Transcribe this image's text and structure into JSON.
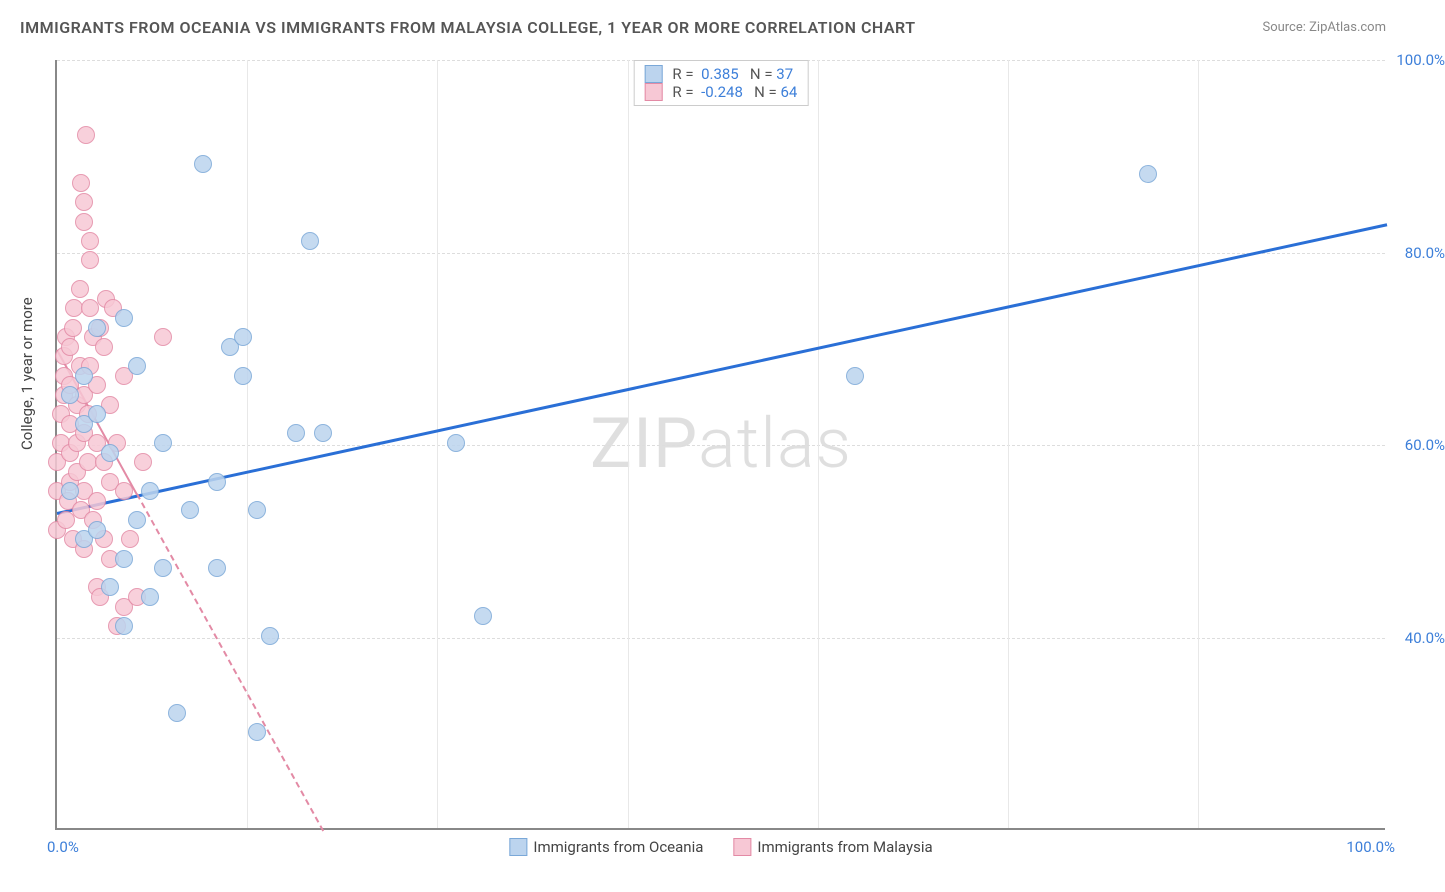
{
  "title": "IMMIGRANTS FROM OCEANIA VS IMMIGRANTS FROM MALAYSIA COLLEGE, 1 YEAR OR MORE CORRELATION CHART",
  "source": "Source: ZipAtlas.com",
  "y_axis_title": "College, 1 year or more",
  "watermark_prefix": "ZIP",
  "watermark_suffix": "atlas",
  "xlim": [
    0,
    100
  ],
  "ylim": [
    20,
    100
  ],
  "x_tick_min": "0.0%",
  "x_tick_max": "100.0%",
  "y_ticks": [
    {
      "v": 40,
      "label": "40.0%"
    },
    {
      "v": 60,
      "label": "60.0%"
    },
    {
      "v": 80,
      "label": "80.0%"
    },
    {
      "v": 100,
      "label": "100.0%"
    }
  ],
  "x_gridlines": [
    14.3,
    28.6,
    42.9,
    57.2,
    71.5,
    85.8
  ],
  "series": [
    {
      "name": "Immigrants from Oceania",
      "fill": "#bcd4ee",
      "stroke": "#7aa8d8",
      "r_value": "0.385",
      "n_value": "37",
      "trend": {
        "x1": 0,
        "y1": 53,
        "x2": 100,
        "y2": 83,
        "color": "#2a6fd6",
        "width": 3,
        "dash": false
      },
      "points": [
        [
          1,
          65
        ],
        [
          1,
          55
        ],
        [
          2,
          67
        ],
        [
          2,
          50
        ],
        [
          2,
          62
        ],
        [
          3,
          63
        ],
        [
          3,
          51
        ],
        [
          3,
          72
        ],
        [
          4,
          45
        ],
        [
          4,
          59
        ],
        [
          5,
          48
        ],
        [
          5,
          73
        ],
        [
          5,
          41
        ],
        [
          6,
          52
        ],
        [
          6,
          68
        ],
        [
          7,
          55
        ],
        [
          7,
          44
        ],
        [
          8,
          47
        ],
        [
          8,
          60
        ],
        [
          9,
          32
        ],
        [
          10,
          53
        ],
        [
          11,
          89
        ],
        [
          12,
          56
        ],
        [
          12,
          47
        ],
        [
          13,
          70
        ],
        [
          14,
          71
        ],
        [
          14,
          67
        ],
        [
          15,
          53
        ],
        [
          15,
          30
        ],
        [
          16,
          40
        ],
        [
          18,
          61
        ],
        [
          19,
          81
        ],
        [
          20,
          61
        ],
        [
          30,
          60
        ],
        [
          32,
          42
        ],
        [
          60,
          67
        ],
        [
          82,
          88
        ]
      ]
    },
    {
      "name": "Immigrants from Malaysia",
      "fill": "#f7c8d5",
      "stroke": "#e38aa5",
      "r_value": "-0.248",
      "n_value": "64",
      "trend": {
        "x1": 0,
        "y1": 70,
        "x2": 20,
        "y2": 20,
        "color": "#e38aa5",
        "width": 2,
        "dash": true,
        "solid_until": 6
      },
      "points": [
        [
          0,
          51
        ],
        [
          0,
          55
        ],
        [
          0,
          58
        ],
        [
          0.3,
          60
        ],
        [
          0.3,
          63
        ],
        [
          0.5,
          65
        ],
        [
          0.5,
          67
        ],
        [
          0.5,
          69
        ],
        [
          0.7,
          71
        ],
        [
          0.7,
          52
        ],
        [
          0.8,
          54
        ],
        [
          1,
          56
        ],
        [
          1,
          59
        ],
        [
          1,
          62
        ],
        [
          1,
          66
        ],
        [
          1,
          70
        ],
        [
          1.2,
          72
        ],
        [
          1.2,
          50
        ],
        [
          1.3,
          74
        ],
        [
          1.5,
          57
        ],
        [
          1.5,
          60
        ],
        [
          1.5,
          64
        ],
        [
          1.7,
          68
        ],
        [
          1.7,
          76
        ],
        [
          1.8,
          53
        ],
        [
          1.8,
          87
        ],
        [
          2,
          55
        ],
        [
          2,
          61
        ],
        [
          2,
          65
        ],
        [
          2,
          83
        ],
        [
          2,
          85
        ],
        [
          2,
          49
        ],
        [
          2.2,
          92
        ],
        [
          2.3,
          58
        ],
        [
          2.3,
          63
        ],
        [
          2.5,
          68
        ],
        [
          2.5,
          74
        ],
        [
          2.5,
          79
        ],
        [
          2.5,
          81
        ],
        [
          2.7,
          52
        ],
        [
          2.7,
          71
        ],
        [
          3,
          45
        ],
        [
          3,
          54
        ],
        [
          3,
          60
        ],
        [
          3,
          66
        ],
        [
          3.2,
          44
        ],
        [
          3.2,
          72
        ],
        [
          3.5,
          50
        ],
        [
          3.5,
          58
        ],
        [
          3.5,
          70
        ],
        [
          3.7,
          75
        ],
        [
          4,
          48
        ],
        [
          4,
          56
        ],
        [
          4,
          64
        ],
        [
          4.2,
          74
        ],
        [
          4.5,
          41
        ],
        [
          4.5,
          60
        ],
        [
          5,
          43
        ],
        [
          5,
          55
        ],
        [
          5,
          67
        ],
        [
          5.5,
          50
        ],
        [
          6,
          44
        ],
        [
          6.5,
          58
        ],
        [
          8,
          71
        ]
      ]
    }
  ],
  "legend_bottom": [
    {
      "label": "Immigrants from Oceania",
      "fill": "#bcd4ee",
      "stroke": "#7aa8d8"
    },
    {
      "label": "Immigrants from Malaysia",
      "fill": "#f7c8d5",
      "stroke": "#e38aa5"
    }
  ],
  "point_radius": 9,
  "background_color": "#ffffff",
  "grid_color_h": "#dddddd",
  "grid_color_v": "#e8e8e8",
  "stat_label_color": "#555555",
  "stat_value_color": "#3d7fd9"
}
